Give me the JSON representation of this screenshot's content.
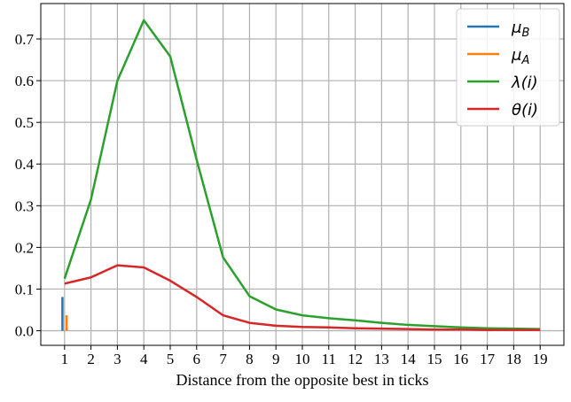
{
  "chart_data": {
    "type": "line",
    "title": "",
    "xlabel": "Distance from the opposite best in ticks",
    "ylabel": "",
    "xlim": [
      0.1,
      19.9
    ],
    "ylim": [
      -0.035,
      0.785
    ],
    "grid": true,
    "legend_position": "top-right",
    "x_ticks": [
      1,
      2,
      3,
      4,
      5,
      6,
      7,
      8,
      9,
      10,
      11,
      12,
      13,
      14,
      15,
      16,
      17,
      18,
      19
    ],
    "y_ticks": [
      0.0,
      0.1,
      0.2,
      0.3,
      0.4,
      0.5,
      0.6,
      0.7
    ],
    "y_tick_labels": [
      "0.0",
      "0.1",
      "0.2",
      "0.3",
      "0.4",
      "0.5",
      "0.6",
      "0.7"
    ],
    "x": [
      1,
      2,
      3,
      4,
      5,
      6,
      7,
      8,
      9,
      10,
      11,
      12,
      13,
      14,
      15,
      16,
      17,
      18,
      19
    ],
    "series": [
      {
        "name": "μ_B",
        "legend_main": "μ",
        "legend_sub": "B",
        "kind": "bar",
        "color": "#1f77b4",
        "points": [
          [
            0.92,
            0.0
          ],
          [
            0.92,
            0.081
          ]
        ]
      },
      {
        "name": "μ_A",
        "legend_main": "μ",
        "legend_sub": "A",
        "kind": "bar",
        "color": "#ff7f0e",
        "points": [
          [
            1.08,
            0.0
          ],
          [
            1.08,
            0.037
          ]
        ]
      },
      {
        "name": "λ(i)",
        "legend_main": "λ(i)",
        "legend_sub": "",
        "kind": "line",
        "color": "#2ca02c",
        "values": [
          0.125,
          0.315,
          0.6,
          0.745,
          0.658,
          0.41,
          0.176,
          0.083,
          0.051,
          0.037,
          0.03,
          0.025,
          0.019,
          0.014,
          0.011,
          0.008,
          0.006,
          0.005,
          0.004
        ]
      },
      {
        "name": "θ(i)",
        "legend_main": "θ(i)",
        "legend_sub": "",
        "kind": "line",
        "color": "#d62728",
        "values": [
          0.113,
          0.128,
          0.157,
          0.152,
          0.12,
          0.081,
          0.037,
          0.019,
          0.012,
          0.009,
          0.008,
          0.006,
          0.005,
          0.004,
          0.003,
          0.003,
          0.002,
          0.002,
          0.002
        ]
      }
    ]
  }
}
